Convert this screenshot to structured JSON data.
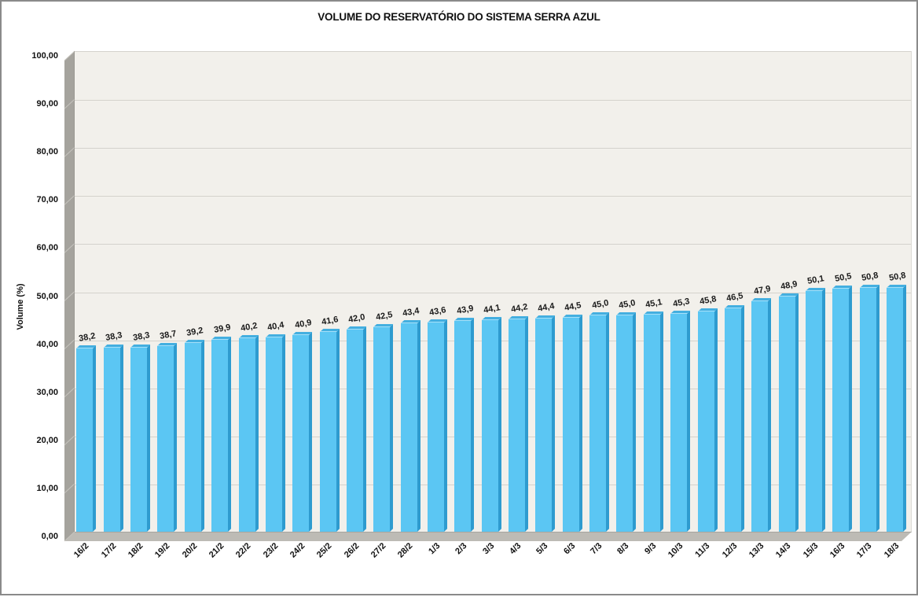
{
  "window": {
    "background": "#FFFFFF",
    "border_color": "#8A8A8A"
  },
  "chart_data": {
    "type": "bar",
    "title": "VOLUME DO RESERVATÓRIO DO SISTEMA SERRA AZUL",
    "xlabel": "",
    "ylabel": "Volume (%)",
    "categories": [
      "16/2",
      "17/2",
      "18/2",
      "19/2",
      "20/2",
      "21/2",
      "22/2",
      "23/2",
      "24/2",
      "25/2",
      "26/2",
      "27/2",
      "28/2",
      "1/3",
      "2/3",
      "3/3",
      "4/3",
      "5/3",
      "6/3",
      "7/3",
      "8/3",
      "9/3",
      "10/3",
      "11/3",
      "12/3",
      "13/3",
      "14/3",
      "15/3",
      "16/3",
      "17/3",
      "18/3"
    ],
    "values": [
      38.2,
      38.3,
      38.3,
      38.7,
      39.2,
      39.9,
      40.2,
      40.4,
      40.9,
      41.6,
      42.0,
      42.5,
      43.4,
      43.6,
      43.9,
      44.1,
      44.2,
      44.4,
      44.5,
      45.0,
      45.0,
      45.1,
      45.3,
      45.8,
      46.5,
      47.9,
      48.9,
      50.1,
      50.5,
      50.8,
      50.8
    ],
    "value_labels": [
      "38,2",
      "38,3",
      "38,3",
      "38,7",
      "39,2",
      "39,9",
      "40,2",
      "40,4",
      "40,9",
      "41,6",
      "42,0",
      "42,5",
      "43,4",
      "43,6",
      "43,9",
      "44,1",
      "44,2",
      "44,4",
      "44,5",
      "45,0",
      "45,0",
      "45,1",
      "45,3",
      "45,8",
      "46,5",
      "47,9",
      "48,9",
      "50,1",
      "50,5",
      "50,8",
      "50,8"
    ],
    "ylim": [
      0,
      100
    ],
    "ytick_step": 10,
    "ytick_labels": [
      "0,00",
      "10,00",
      "20,00",
      "30,00",
      "40,00",
      "50,00",
      "60,00",
      "70,00",
      "80,00",
      "90,00",
      "100,00"
    ],
    "grid": true,
    "legend": "none",
    "style": {
      "bar_color": "#5BC6F3",
      "bar_side_color": "#2E9BCF",
      "bar_top_color": "#44AFE0",
      "bar_top_highlight": "#A6E0F9",
      "plot_background": "#F2F0EB",
      "wall_color": "#A5A39D",
      "wall_gridline_color": "#C6C4BE",
      "floor_color": "#BDBBB5",
      "floor_edge_color": "#8F8D87",
      "gridline_color": "#D4D2CC"
    }
  }
}
